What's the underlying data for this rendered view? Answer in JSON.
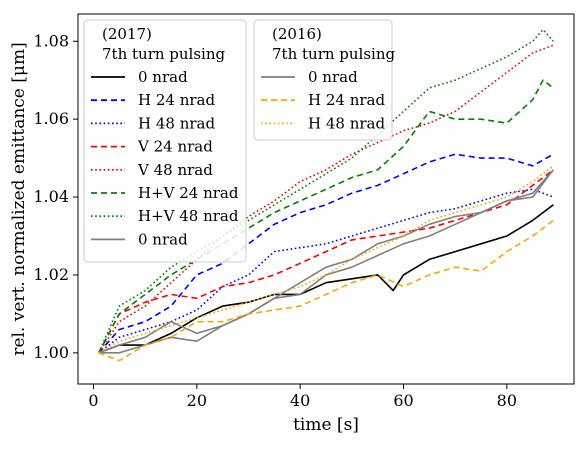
{
  "chart_data": {
    "type": "line",
    "xlabel": "time [s]",
    "ylabel": "rel. vert. normalized emittance [μm]",
    "xlim": [
      -3,
      93
    ],
    "ylim": [
      0.992,
      1.087
    ],
    "xticks": [
      0,
      20,
      40,
      60,
      80
    ],
    "yticks": [
      1.0,
      1.02,
      1.04,
      1.06,
      1.08
    ],
    "xtick_labels": [
      "0",
      "20",
      "40",
      "60",
      "80"
    ],
    "ytick_labels": [
      "1.00",
      "1.02",
      "1.04",
      "1.06",
      "1.08"
    ],
    "grid": false,
    "legends": [
      {
        "placement": "top-left",
        "title_lines": [
          "(2017)",
          "7th turn pulsing"
        ],
        "entries": [
          "0 nrad",
          "H 24 nrad",
          "H 48 nrad",
          "V 24 nrad",
          "V 48 nrad",
          "H+V 24 nrad",
          "H+V 48 nrad",
          "0 nrad"
        ]
      },
      {
        "placement": "top-center",
        "title_lines": [
          "(2016)",
          "7th turn pulsing"
        ],
        "entries": [
          "0 nrad",
          "H 24 nrad",
          "H 48 nrad"
        ]
      }
    ],
    "series": [
      {
        "name": "0 nrad",
        "group": "2017",
        "color": "#000000",
        "dash": "solid",
        "x": [
          1,
          5,
          10,
          15,
          20,
          25,
          30,
          35,
          40,
          45,
          50,
          55,
          58,
          60,
          65,
          70,
          75,
          80,
          85,
          89
        ],
        "y": [
          1.0,
          1.002,
          1.002,
          1.005,
          1.009,
          1.012,
          1.013,
          1.015,
          1.015,
          1.018,
          1.019,
          1.02,
          1.016,
          1.02,
          1.024,
          1.026,
          1.028,
          1.03,
          1.034,
          1.038
        ]
      },
      {
        "name": "H 24 nrad",
        "group": "2017",
        "color": "#0000ff",
        "dash": "dashed",
        "x": [
          1,
          5,
          10,
          15,
          20,
          25,
          30,
          35,
          40,
          45,
          50,
          55,
          60,
          65,
          70,
          75,
          80,
          85,
          89
        ],
        "y": [
          1.0,
          1.006,
          1.008,
          1.012,
          1.02,
          1.023,
          1.028,
          1.033,
          1.036,
          1.038,
          1.041,
          1.043,
          1.046,
          1.049,
          1.051,
          1.05,
          1.05,
          1.048,
          1.051
        ]
      },
      {
        "name": "H 48 nrad",
        "group": "2017",
        "color": "#0000ff",
        "dash": "dotted",
        "x": [
          1,
          5,
          10,
          15,
          20,
          25,
          30,
          35,
          40,
          45,
          50,
          55,
          60,
          65,
          70,
          75,
          80,
          85,
          89
        ],
        "y": [
          1.0,
          1.004,
          1.006,
          1.008,
          1.011,
          1.017,
          1.02,
          1.026,
          1.027,
          1.028,
          1.03,
          1.032,
          1.034,
          1.036,
          1.037,
          1.039,
          1.041,
          1.042,
          1.04
        ]
      },
      {
        "name": "V 24 nrad",
        "group": "2017",
        "color": "#ff0000",
        "dash": "dashed",
        "x": [
          1,
          5,
          10,
          15,
          20,
          25,
          30,
          35,
          40,
          45,
          50,
          55,
          60,
          65,
          70,
          75,
          80,
          85,
          89
        ],
        "y": [
          1.0,
          1.01,
          1.013,
          1.015,
          1.014,
          1.017,
          1.018,
          1.02,
          1.023,
          1.026,
          1.029,
          1.03,
          1.031,
          1.032,
          1.034,
          1.036,
          1.038,
          1.043,
          1.047
        ]
      },
      {
        "name": "V 48 nrad",
        "group": "2017",
        "color": "#ff0000",
        "dash": "dotted",
        "x": [
          1,
          5,
          10,
          15,
          20,
          25,
          30,
          35,
          40,
          45,
          50,
          55,
          60,
          65,
          70,
          75,
          80,
          85,
          89
        ],
        "y": [
          1.0,
          1.008,
          1.012,
          1.018,
          1.024,
          1.03,
          1.035,
          1.039,
          1.044,
          1.047,
          1.051,
          1.054,
          1.057,
          1.059,
          1.062,
          1.067,
          1.072,
          1.077,
          1.079
        ]
      },
      {
        "name": "H+V 24 nrad",
        "group": "2017",
        "color": "#008000",
        "dash": "dashed",
        "x": [
          1,
          5,
          10,
          15,
          20,
          25,
          30,
          35,
          40,
          45,
          50,
          55,
          60,
          65,
          70,
          75,
          80,
          85,
          87,
          89
        ],
        "y": [
          1.0,
          1.01,
          1.015,
          1.02,
          1.024,
          1.028,
          1.032,
          1.036,
          1.039,
          1.042,
          1.045,
          1.047,
          1.053,
          1.062,
          1.06,
          1.06,
          1.059,
          1.065,
          1.07,
          1.068
        ]
      },
      {
        "name": "H+V 48 nrad",
        "group": "2017",
        "color": "#008000",
        "dash": "dotted",
        "x": [
          1,
          5,
          10,
          15,
          20,
          25,
          30,
          35,
          40,
          45,
          50,
          55,
          60,
          65,
          70,
          75,
          80,
          85,
          87,
          89
        ],
        "y": [
          1.0,
          1.012,
          1.016,
          1.022,
          1.026,
          1.03,
          1.034,
          1.038,
          1.042,
          1.046,
          1.05,
          1.056,
          1.062,
          1.068,
          1.07,
          1.073,
          1.076,
          1.08,
          1.083,
          1.08
        ]
      },
      {
        "name": "0 nrad",
        "group": "2017",
        "color": "#808080",
        "dash": "solid",
        "x": [
          1,
          5,
          10,
          15,
          20,
          25,
          30,
          35,
          40,
          45,
          50,
          55,
          60,
          65,
          70,
          75,
          80,
          85,
          89
        ],
        "y": [
          1.0,
          1.0,
          1.002,
          1.004,
          1.003,
          1.007,
          1.01,
          1.014,
          1.015,
          1.02,
          1.022,
          1.025,
          1.028,
          1.03,
          1.033,
          1.036,
          1.039,
          1.041,
          1.047
        ]
      },
      {
        "name": "0 nrad",
        "group": "2016",
        "color": "#808080",
        "dash": "solid",
        "x": [
          1,
          5,
          10,
          15,
          20,
          25,
          30,
          35,
          40,
          45,
          50,
          55,
          60,
          65,
          70,
          75,
          80,
          85,
          89
        ],
        "y": [
          1.0,
          1.002,
          1.004,
          1.008,
          1.005,
          1.007,
          1.01,
          1.014,
          1.018,
          1.022,
          1.024,
          1.028,
          1.03,
          1.033,
          1.035,
          1.036,
          1.039,
          1.04,
          1.047
        ]
      },
      {
        "name": "H 24 nrad",
        "group": "2016",
        "color": "#ffa500",
        "dash": "dashed",
        "x": [
          1,
          5,
          10,
          15,
          20,
          25,
          30,
          35,
          40,
          45,
          50,
          55,
          60,
          65,
          70,
          75,
          80,
          85,
          89
        ],
        "y": [
          1.0,
          0.998,
          1.002,
          1.004,
          1.008,
          1.008,
          1.01,
          1.011,
          1.012,
          1.015,
          1.018,
          1.02,
          1.017,
          1.02,
          1.022,
          1.021,
          1.026,
          1.03,
          1.034
        ]
      },
      {
        "name": "H 48 nrad",
        "group": "2016",
        "color": "#ffa500",
        "dash": "dotted",
        "x": [
          1,
          5,
          10,
          15,
          20,
          25,
          30,
          35,
          40,
          45,
          50,
          55,
          60,
          65,
          70,
          75,
          80,
          85,
          89
        ],
        "y": [
          1.0,
          1.003,
          1.005,
          1.007,
          1.009,
          1.011,
          1.013,
          1.015,
          1.017,
          1.02,
          1.024,
          1.027,
          1.03,
          1.034,
          1.036,
          1.038,
          1.04,
          1.044,
          1.048
        ]
      }
    ]
  }
}
